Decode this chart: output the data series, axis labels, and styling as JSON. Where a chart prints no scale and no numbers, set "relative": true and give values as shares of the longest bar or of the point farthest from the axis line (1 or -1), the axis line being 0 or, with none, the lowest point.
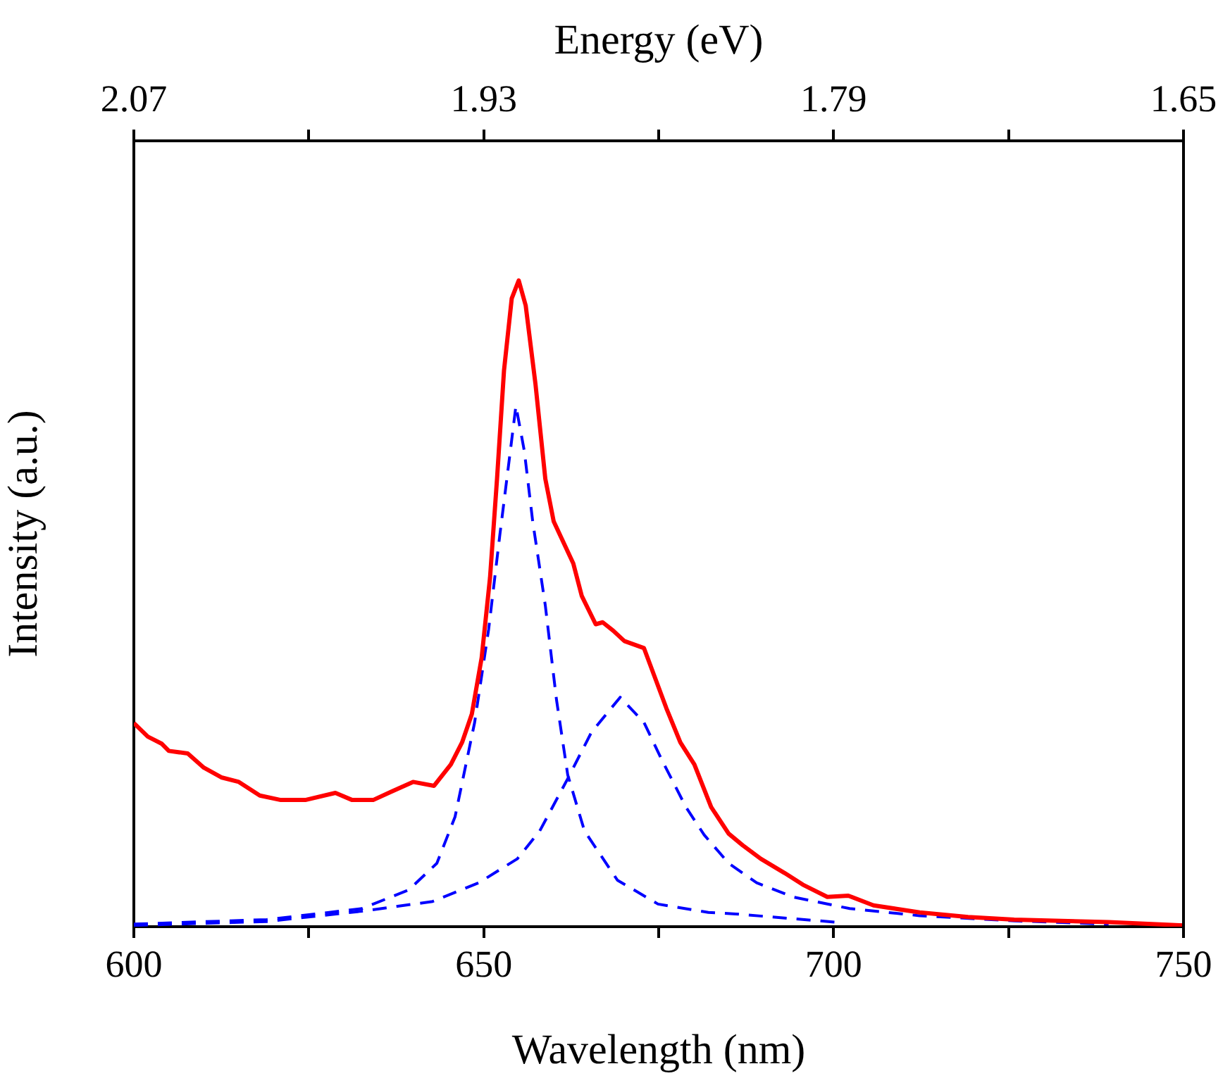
{
  "chart_data": {
    "type": "line",
    "xlabel": "Wavelength (nm)",
    "ylabel": "Intensity (a.u.)",
    "x2label": "Energy (eV)",
    "relative": true,
    "grid": false,
    "legend": false,
    "marker": "none",
    "tick_labels": "x",
    "xlim": [
      600,
      750
    ],
    "xticks": [
      600,
      {
        "value": 625,
        "label": null
      },
      650,
      {
        "value": 675,
        "label": null
      },
      700,
      {
        "value": 725,
        "label": null
      },
      750
    ],
    "x2lim": [
      2.07,
      1.65
    ],
    "x2ticks": [
      2.07,
      {
        "value": 2.0,
        "label": null
      },
      1.93,
      {
        "value": 1.86,
        "label": null
      },
      1.79,
      {
        "value": 1.72,
        "label": null
      },
      1.65
    ],
    "series": [
      {
        "color": "#ff0000",
        "line_style": "solid",
        "x": [
          600,
          602,
          604,
          605,
          607.7,
          610,
          612.5,
          615,
          618,
          621,
          624.5,
          628.8,
          631.2,
          634.2,
          636.8,
          639.9,
          642.9,
          645.3,
          646.9,
          648.3,
          649.7,
          650.9,
          651.9,
          652.9,
          654,
          655,
          656,
          657.4,
          658.8,
          660,
          662.8,
          664,
          666,
          667,
          668.5,
          670.1,
          672.9,
          676.1,
          678.1,
          680.1,
          682.5,
          685,
          687,
          689.6,
          693,
          695.6,
          699.1,
          702.1,
          705.7,
          712.3,
          719.2,
          725.8,
          732.5,
          739.3,
          750
        ],
        "values": [
          0.315,
          0.294,
          0.283,
          0.272,
          0.268,
          0.246,
          0.231,
          0.224,
          0.203,
          0.196,
          0.196,
          0.207,
          0.196,
          0.196,
          0.209,
          0.224,
          0.218,
          0.251,
          0.285,
          0.329,
          0.416,
          0.54,
          0.693,
          0.861,
          0.972,
          1,
          0.961,
          0.839,
          0.693,
          0.627,
          0.562,
          0.512,
          0.468,
          0.471,
          0.458,
          0.442,
          0.431,
          0.338,
          0.285,
          0.251,
          0.185,
          0.144,
          0.126,
          0.105,
          0.083,
          0.065,
          0.046,
          0.048,
          0.033,
          0.022,
          0.015,
          0.011,
          0.009,
          0.007,
          0.002
        ]
      },
      {
        "color": "#0000ff",
        "line_style": "dashed",
        "x": [
          600,
          619,
          632.6,
          639.3,
          643.3,
          645.9,
          648.7,
          650.7,
          652.3,
          653.8,
          654.6,
          655.8,
          657,
          658.8,
          660.4,
          662,
          664.4,
          669.1,
          674.9,
          682.1,
          685.6,
          700.3
        ],
        "values": [
          0.004,
          0.011,
          0.028,
          0.057,
          0.098,
          0.17,
          0.316,
          0.46,
          0.606,
          0.736,
          0.806,
          0.736,
          0.627,
          0.497,
          0.351,
          0.235,
          0.148,
          0.072,
          0.035,
          0.022,
          0.02,
          0.007
        ]
      },
      {
        "color": "#0000ff",
        "line_style": "dashed",
        "x": [
          600,
          619,
          632.6,
          642.7,
          649.3,
          654.8,
          658,
          662,
          665.4,
          669.5,
          672.9,
          675.5,
          678.9,
          681.5,
          685,
          689,
          694.2,
          702.3,
          712.3,
          725.8,
          739.3
        ],
        "values": [
          0.002,
          0.008,
          0.024,
          0.039,
          0.068,
          0.105,
          0.148,
          0.229,
          0.301,
          0.355,
          0.316,
          0.257,
          0.185,
          0.142,
          0.098,
          0.068,
          0.046,
          0.028,
          0.017,
          0.009,
          0.004
        ]
      }
    ]
  }
}
